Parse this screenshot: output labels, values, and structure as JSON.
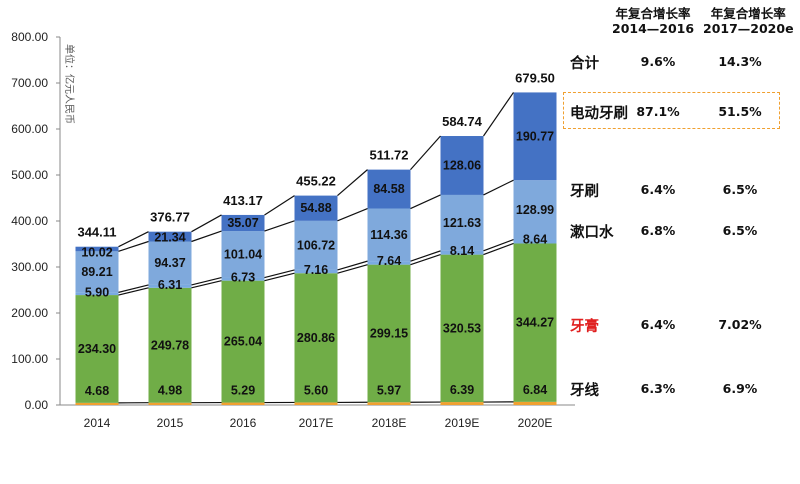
{
  "chart_data": {
    "type": "bar",
    "stacked": true,
    "unit_label": "单位：亿元人民币",
    "categories": [
      "2014",
      "2015",
      "2016",
      "2017E",
      "2018E",
      "2019E",
      "2020E"
    ],
    "series": [
      {
        "name": "牙线",
        "color": "#f0a030",
        "values": [
          4.68,
          4.98,
          5.29,
          5.6,
          5.97,
          6.39,
          6.84
        ]
      },
      {
        "name": "牙膏",
        "color": "#70ad47",
        "values": [
          234.3,
          249.78,
          265.04,
          280.86,
          299.15,
          320.53,
          344.27
        ]
      },
      {
        "name": "漱口水",
        "color": "#7aaae0",
        "values": [
          5.9,
          6.31,
          6.73,
          7.16,
          7.64,
          8.14,
          8.64
        ]
      },
      {
        "name": "牙刷",
        "color": "#7fa9dc",
        "values": [
          89.21,
          94.37,
          101.04,
          106.72,
          114.36,
          121.63,
          128.99
        ]
      },
      {
        "name": "电动牙刷",
        "color": "#4472c4",
        "values": [
          10.02,
          21.34,
          35.07,
          54.88,
          84.58,
          128.06,
          190.77
        ]
      }
    ],
    "totals": [
      "344.11",
      "376.77",
      "413.17",
      "455.22",
      "511.72",
      "584.74",
      "679.50"
    ],
    "ylim": [
      0,
      800
    ],
    "yticks": [
      "0.00",
      "100.00",
      "200.00",
      "300.00",
      "400.00",
      "500.00",
      "600.00",
      "700.00",
      "800.00"
    ],
    "grid": false,
    "cagr_table": {
      "headers": [
        [
          "年复合增长率",
          "2014—2016"
        ],
        [
          "年复合增长率",
          "2017—2020e"
        ]
      ],
      "rows": [
        {
          "label": "合计",
          "c1": "9.6%",
          "c2": "14.3%",
          "color": "#111111"
        },
        {
          "label": "电动牙刷",
          "c1": "87.1%",
          "c2": "51.5%",
          "color": "#111111"
        },
        {
          "label": "牙刷",
          "c1": "6.4%",
          "c2": "6.5%",
          "color": "#111111"
        },
        {
          "label": "漱口水",
          "c1": "6.8%",
          "c2": "6.5%",
          "color": "#111111"
        },
        {
          "label": "牙膏",
          "c1": "6.4%",
          "c2": "7.02%",
          "color": "#e02020"
        },
        {
          "label": "牙线",
          "c1": "6.3%",
          "c2": "6.9%",
          "color": "#111111"
        }
      ]
    }
  }
}
